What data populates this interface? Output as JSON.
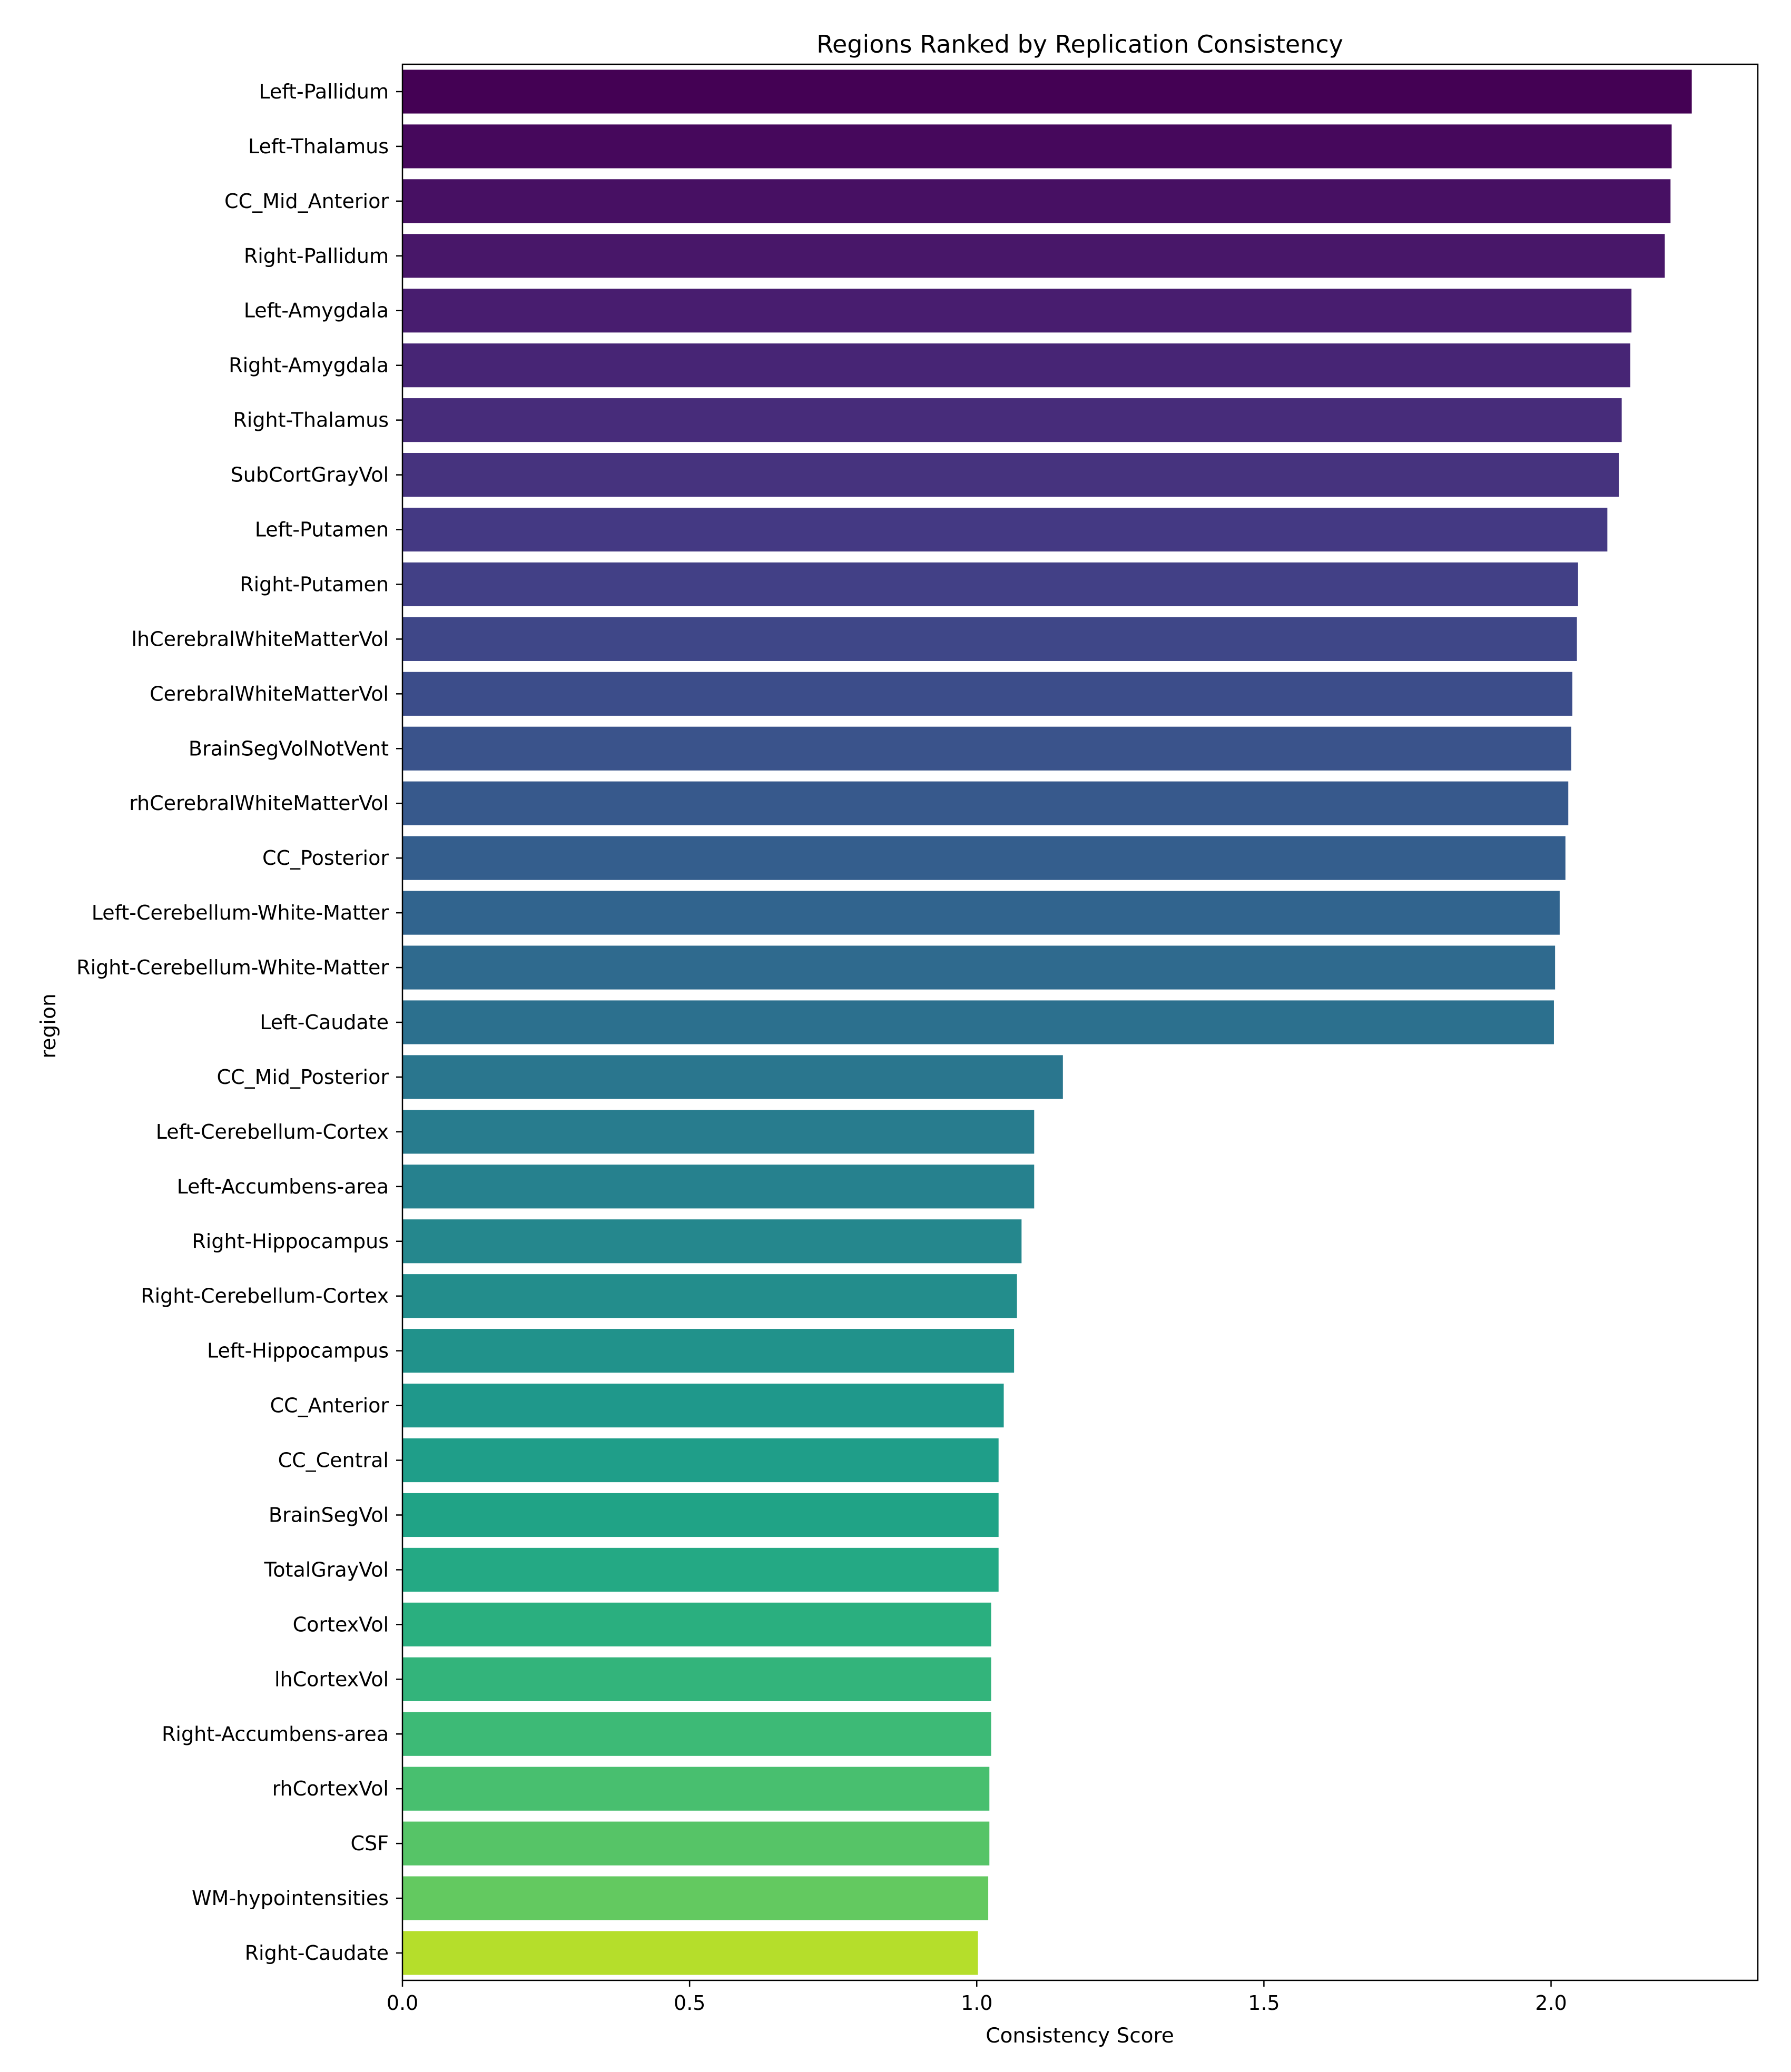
{
  "chart_data": {
    "type": "bar",
    "orientation": "horizontal",
    "title": "Regions Ranked by Replication Consistency",
    "xlabel": "Consistency Score",
    "ylabel": "region",
    "xlim": [
      0,
      2.36
    ],
    "xticks": [
      "0.0",
      "0.5",
      "1.0",
      "1.5",
      "2.0"
    ],
    "xtick_values": [
      0.0,
      0.5,
      1.0,
      1.5,
      2.0
    ],
    "grid": false,
    "legend": "none",
    "colormap": "viridis",
    "categories": [
      "Left-Pallidum",
      "Left-Thalamus",
      "CC_Mid_Anterior",
      "Right-Pallidum",
      "Left-Amygdala",
      "Right-Amygdala",
      "Right-Thalamus",
      "SubCortGrayVol",
      "Left-Putamen",
      "Right-Putamen",
      "lhCerebralWhiteMatterVol",
      "CerebralWhiteMatterVol",
      "BrainSegVolNotVent",
      "rhCerebralWhiteMatterVol",
      "CC_Posterior",
      "Left-Cerebellum-White-Matter",
      "Right-Cerebellum-White-Matter",
      "Left-Caudate",
      "CC_Mid_Posterior",
      "Left-Cerebellum-Cortex",
      "Left-Accumbens-area",
      "Right-Hippocampus",
      "Right-Cerebellum-Cortex",
      "Left-Hippocampus",
      "CC_Anterior",
      "CC_Central",
      "BrainSegVol",
      "TotalGrayVol",
      "CortexVol",
      "lhCortexVol",
      "Right-Accumbens-area",
      "rhCortexVol",
      "CSF",
      "WM-hypointensities",
      "Right-Caudate"
    ],
    "values": [
      2.245,
      2.21,
      2.208,
      2.198,
      2.14,
      2.138,
      2.123,
      2.118,
      2.098,
      2.047,
      2.045,
      2.037,
      2.035,
      2.03,
      2.025,
      2.015,
      2.007,
      2.005,
      1.15,
      1.1,
      1.1,
      1.078,
      1.07,
      1.065,
      1.047,
      1.038,
      1.038,
      1.038,
      1.025,
      1.025,
      1.025,
      1.022,
      1.022,
      1.02,
      1.002
    ],
    "colors": [
      "#440154",
      "#46085c",
      "#471063",
      "#481769",
      "#481d6f",
      "#472575",
      "#472c7a",
      "#46337e",
      "#443983",
      "#424086",
      "#3f4788",
      "#3c4d8a",
      "#3a538b",
      "#37598c",
      "#345e8d",
      "#31648e",
      "#2f6a8e",
      "#2c708e",
      "#2a768e",
      "#287c8e",
      "#26818e",
      "#25878d",
      "#238d8c",
      "#21928b",
      "#1f988b",
      "#1f9e89",
      "#20a386",
      "#24a984",
      "#2aaf7f",
      "#33b47b",
      "#3dba76",
      "#48bf6f",
      "#56c467",
      "#63c960",
      "#b5de2b"
    ]
  }
}
